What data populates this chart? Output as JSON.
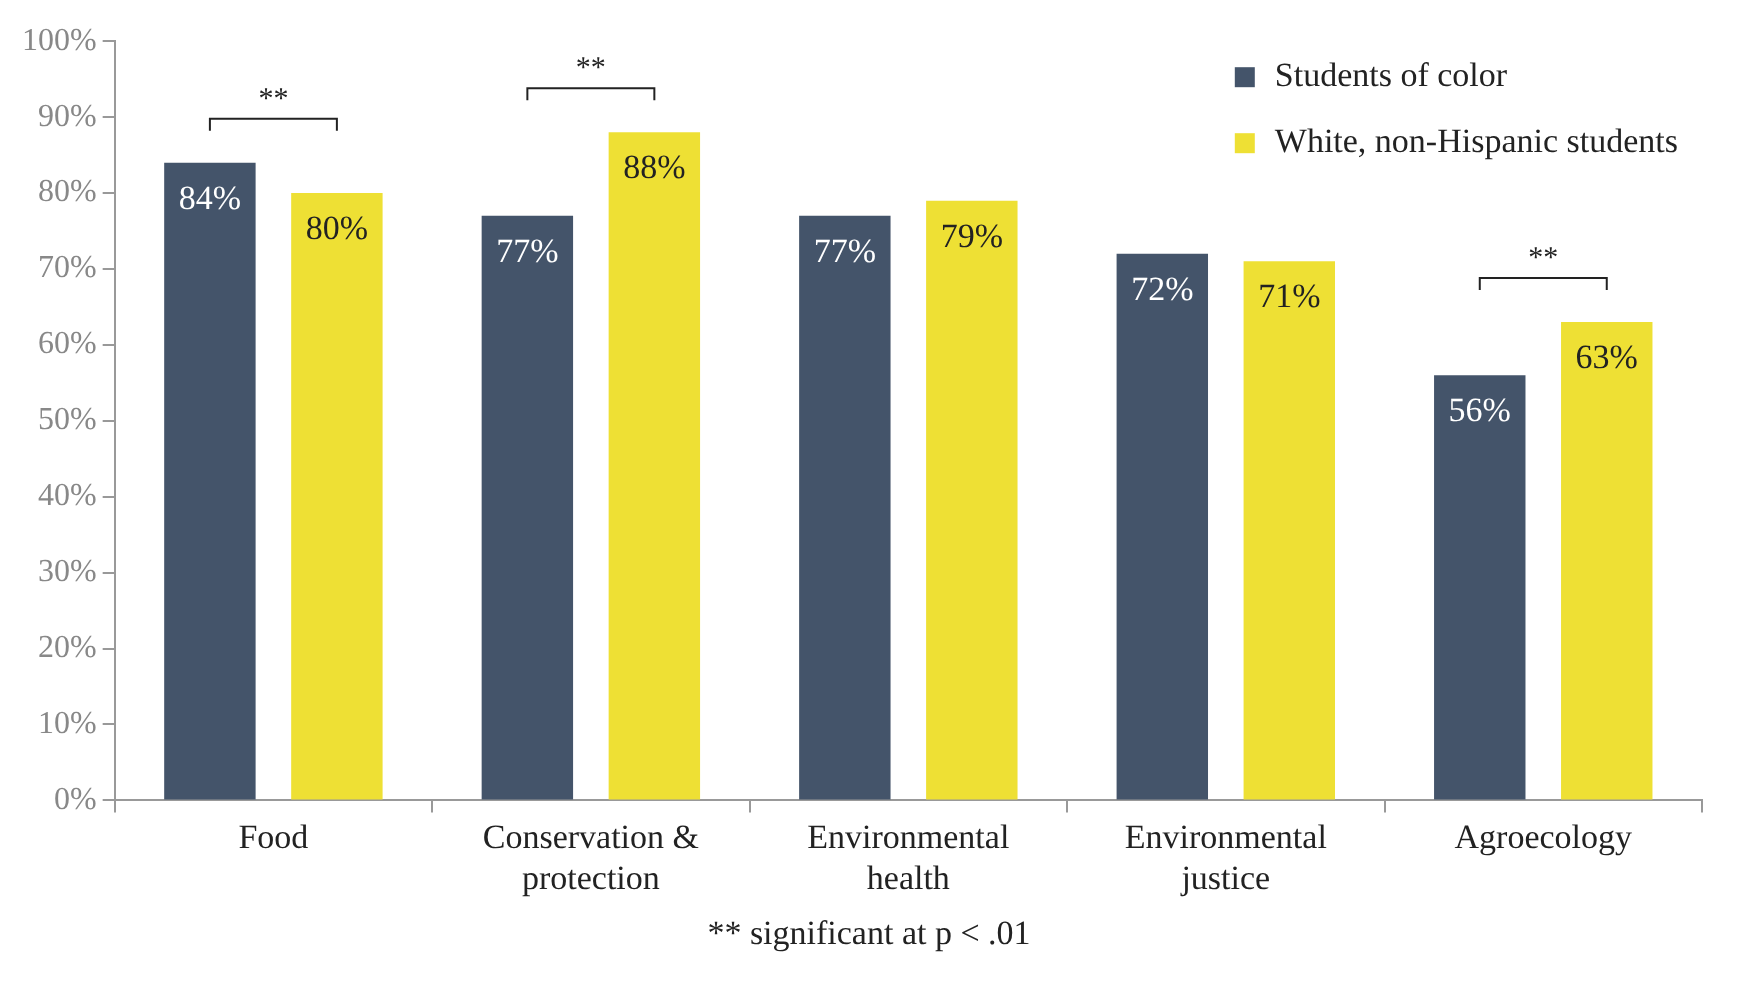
{
  "chart_data": {
    "type": "bar",
    "categories": [
      "Food",
      "Conservation & protection",
      "Environmental health",
      "Environmental justice",
      "Agroecology"
    ],
    "series": [
      {
        "name": "Students of color",
        "color": "#44546a",
        "values": [
          84,
          77,
          77,
          72,
          56
        ],
        "value_labels": [
          "84%",
          "77%",
          "77%",
          "72%",
          "56%"
        ]
      },
      {
        "name": "White, non-Hispanic students",
        "color": "#eee034",
        "values": [
          80,
          88,
          79,
          71,
          63
        ],
        "value_labels": [
          "80%",
          "88%",
          "79%",
          "71%",
          "63%"
        ]
      }
    ],
    "ylim": [
      0,
      100
    ],
    "yticks": [
      {
        "value": 0,
        "label": "0%"
      },
      {
        "value": 10,
        "label": "10%"
      },
      {
        "value": 20,
        "label": "20%"
      },
      {
        "value": 30,
        "label": "30%"
      },
      {
        "value": 40,
        "label": "40%"
      },
      {
        "value": 50,
        "label": "50%"
      },
      {
        "value": 60,
        "label": "60%"
      },
      {
        "value": 70,
        "label": "70%"
      },
      {
        "value": 80,
        "label": "80%"
      },
      {
        "value": 90,
        "label": "90%"
      },
      {
        "value": 100,
        "label": "100%"
      }
    ],
    "grid": false,
    "legend": "top right",
    "annotations": [
      "**",
      "**",
      "**",
      "** significant at p < .01"
    ]
  }
}
